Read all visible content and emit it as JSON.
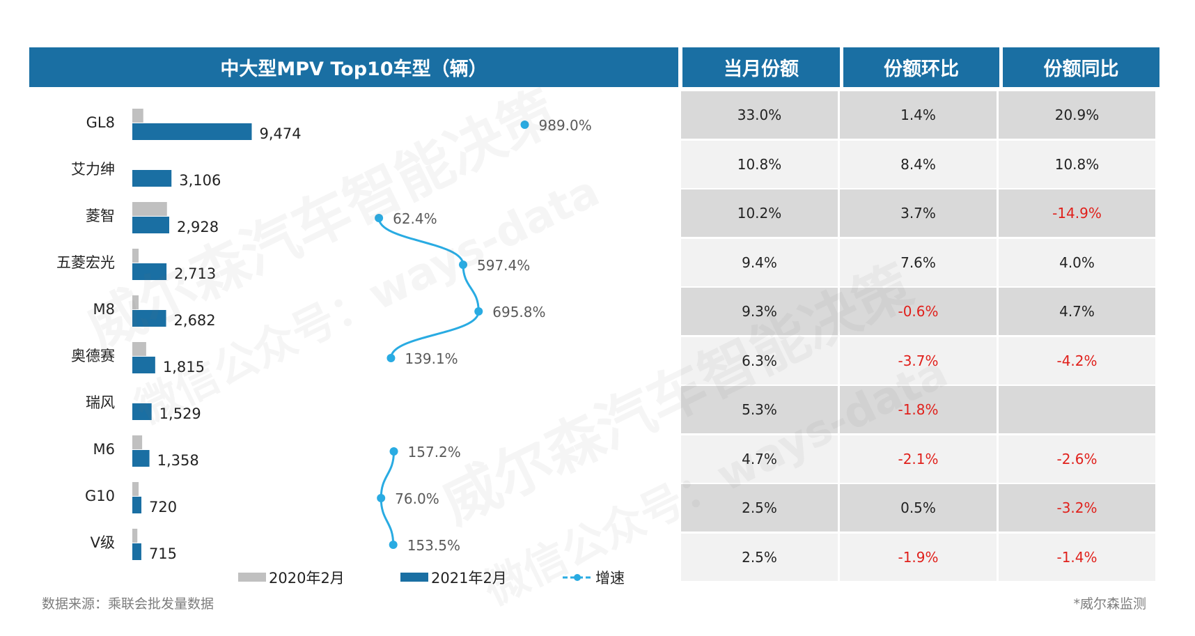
{
  "header": {
    "chart_title": "中大型MPV Top10车型（辆）",
    "col_share": "当月份额",
    "col_mom": "份额环比",
    "col_yoy": "份额同比"
  },
  "chart_data": {
    "type": "bar",
    "title": "中大型MPV Top10车型（辆）",
    "categories": [
      "GL8",
      "艾力绅",
      "菱智",
      "五菱宏光",
      "M8",
      "奥德赛",
      "瑞风",
      "M6",
      "G10",
      "V级"
    ],
    "series": [
      {
        "name": "2020年2月",
        "color": "#c0c0c0",
        "values": [
          870,
          null,
          2750,
          500,
          500,
          1100,
          null,
          780,
          500,
          400
        ]
      },
      {
        "name": "2021年2月",
        "color": "#1a6fa3",
        "values": [
          9474,
          3106,
          2928,
          2713,
          2682,
          1815,
          1529,
          1358,
          720,
          715
        ]
      },
      {
        "name": "增速",
        "color": "#29abe2",
        "type": "line",
        "values": [
          989.0,
          null,
          62.4,
          597.4,
          695.8,
          139.1,
          null,
          157.2,
          76.0,
          153.5
        ]
      }
    ],
    "value_labels": [
      "9,474",
      "3,106",
      "2,928",
      "2,713",
      "2,682",
      "1,815",
      "1,529",
      "1,358",
      "720",
      "715"
    ],
    "growth_labels": [
      "989.0%",
      "",
      "62.4%",
      "597.4%",
      "695.8%",
      "139.1%",
      "",
      "157.2%",
      "76.0%",
      "153.5%"
    ],
    "legend": [
      "2020年2月",
      "2021年2月",
      "增速"
    ],
    "legend_position": "bottom",
    "bar_max": 10000,
    "growth_range": [
      0,
      1000
    ]
  },
  "table": {
    "rows": [
      {
        "share": "33.0%",
        "mom": "1.4%",
        "yoy": "20.9%"
      },
      {
        "share": "10.8%",
        "mom": "8.4%",
        "yoy": "10.8%"
      },
      {
        "share": "10.2%",
        "mom": "3.7%",
        "yoy": "-14.9%"
      },
      {
        "share": "9.4%",
        "mom": "7.6%",
        "yoy": "4.0%"
      },
      {
        "share": "9.3%",
        "mom": "-0.6%",
        "yoy": "4.7%"
      },
      {
        "share": "6.3%",
        "mom": "-3.7%",
        "yoy": "-4.2%"
      },
      {
        "share": "5.3%",
        "mom": "-1.8%",
        "yoy": ""
      },
      {
        "share": "4.7%",
        "mom": "-2.1%",
        "yoy": "-2.6%"
      },
      {
        "share": "2.5%",
        "mom": "0.5%",
        "yoy": "-3.2%"
      },
      {
        "share": "2.5%",
        "mom": "-1.9%",
        "yoy": "-1.4%"
      }
    ]
  },
  "footer": {
    "source": "数据来源：乘联会批发量数据",
    "note": "*威尔森监测"
  },
  "watermark": {
    "line1": "威尔森汽车智能决策",
    "line2": "微信公众号：ways-data"
  },
  "colors": {
    "header_bg": "#1a6fa3",
    "bar_2020": "#c0c0c0",
    "bar_2021": "#1a6fa3",
    "growth_line": "#29abe2",
    "negative": "#e0201b",
    "row_dark": "#d9d9d9",
    "row_light": "#f2f2f2"
  }
}
